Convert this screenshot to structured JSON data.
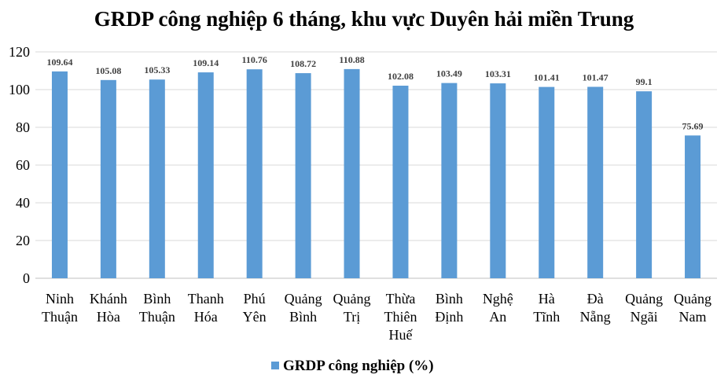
{
  "chart_data": {
    "type": "bar",
    "title": "GRDP công nghiệp 6 tháng, khu vực Duyên hải miền Trung",
    "categories": [
      [
        "Ninh",
        "Thuận"
      ],
      [
        "Khánh",
        "Hòa"
      ],
      [
        "Bình",
        "Thuận"
      ],
      [
        "Thanh",
        "Hóa"
      ],
      [
        "Phú",
        "Yên"
      ],
      [
        "Quảng",
        "Bình"
      ],
      [
        "Quảng",
        "Trị"
      ],
      [
        "Thừa",
        "Thiên",
        "Huế"
      ],
      [
        "Bình",
        "Định"
      ],
      [
        "Nghệ",
        "An"
      ],
      [
        "Hà",
        "Tĩnh"
      ],
      [
        "Đà",
        "Nẵng"
      ],
      [
        "Quảng",
        "Ngãi"
      ],
      [
        "Quảng",
        "Nam"
      ]
    ],
    "series": [
      {
        "name": "GRDP công nghiệp (%)",
        "values": [
          109.64,
          105.08,
          105.33,
          109.14,
          110.76,
          108.72,
          110.88,
          102.08,
          103.49,
          103.31,
          101.41,
          101.47,
          99.1,
          75.69
        ],
        "labels": [
          "109.64",
          "105.08",
          "105.33",
          "109.14",
          "110.76",
          "108.72",
          "110.88",
          "102.08",
          "103.49",
          "103.31",
          "101.41",
          "101.47",
          "99.1",
          "75.69"
        ],
        "color": "#5b9bd5"
      }
    ],
    "ylim": [
      0,
      120
    ],
    "yticks": [
      0,
      20,
      40,
      60,
      80,
      100,
      120
    ],
    "grid": true,
    "gridColor": "#d9d9d9",
    "legend_position": "bottom"
  }
}
